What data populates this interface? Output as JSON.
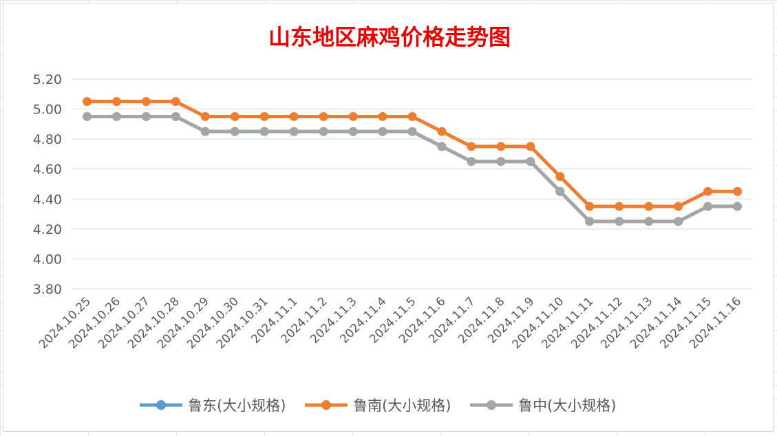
{
  "chart_data": {
    "type": "line",
    "title": "山东地区麻鸡价格走势图",
    "title_color": "#e60000",
    "xlabel": "",
    "ylabel": "",
    "ylim": [
      3.8,
      5.2
    ],
    "yticks": [
      "5.20",
      "5.00",
      "4.80",
      "4.60",
      "4.40",
      "4.20",
      "4.00",
      "3.80"
    ],
    "ytick_values": [
      5.2,
      5.0,
      4.8,
      4.6,
      4.4,
      4.2,
      4.0,
      3.8
    ],
    "grid": true,
    "legend_position": "bottom",
    "categories": [
      "2024.10.25",
      "2024.10.26",
      "2024.10.27",
      "2024.10.28",
      "2024.10.29",
      "2024.10.30",
      "2024.10.31",
      "2024.11.1",
      "2024.11.2",
      "2024.11.3",
      "2024.11.4",
      "2024.11.5",
      "2024.11.6",
      "2024.11.7",
      "2024.11.8",
      "2024.11.9",
      "2024.11.10",
      "2024.11.11",
      "2024.11.12",
      "2024.11.13",
      "2024.11.14",
      "2024.11.15",
      "2024.11.16"
    ],
    "series": [
      {
        "name": "鲁东(大小规格)",
        "color": "#5b9bd5",
        "values": [
          4.95,
          4.95,
          4.95,
          4.95,
          4.85,
          4.85,
          4.85,
          4.85,
          4.85,
          4.85,
          4.85,
          4.85,
          4.75,
          4.65,
          4.65,
          4.65,
          4.45,
          4.25,
          4.25,
          4.25,
          4.25,
          4.35,
          4.35
        ]
      },
      {
        "name": "鲁南(大小规格)",
        "color": "#ed7d31",
        "values": [
          5.05,
          5.05,
          5.05,
          5.05,
          4.95,
          4.95,
          4.95,
          4.95,
          4.95,
          4.95,
          4.95,
          4.95,
          4.85,
          4.75,
          4.75,
          4.75,
          4.55,
          4.35,
          4.35,
          4.35,
          4.35,
          4.45,
          4.45
        ]
      },
      {
        "name": "鲁中(大小规格)",
        "color": "#a5a5a5",
        "values": [
          4.95,
          4.95,
          4.95,
          4.95,
          4.85,
          4.85,
          4.85,
          4.85,
          4.85,
          4.85,
          4.85,
          4.85,
          4.75,
          4.65,
          4.65,
          4.65,
          4.45,
          4.25,
          4.25,
          4.25,
          4.25,
          4.35,
          4.35
        ]
      }
    ]
  }
}
